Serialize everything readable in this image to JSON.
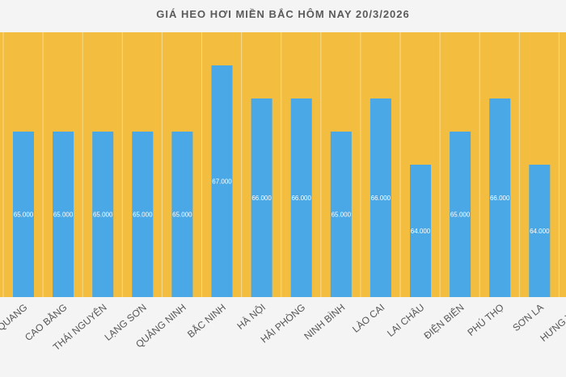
{
  "colors": {
    "plot_bg": "#f3bd3f",
    "bar": "#4aa8e6",
    "divider": "#f8da8e",
    "bar_label": "#ffffff"
  },
  "chart_data": {
    "type": "bar",
    "title": "GIÁ HEO HƠI MIỀN BẮC HÔM NAY 20/3/2026",
    "categories": [
      "QUANG",
      "CAO BẰNG",
      "THÁI NGUYÊN",
      "LẠNG SƠN",
      "QUẢNG NINH",
      "BẮC NINH",
      "HÀ NỘI",
      "HẢI PHÒNG",
      "NINH BÌNH",
      "LÀO CAI",
      "LAI CHÂU",
      "ĐIỆN BIÊN",
      "PHÚ THỌ",
      "SƠN LA",
      "HƯNG YÊN"
    ],
    "values": [
      65000,
      65000,
      65000,
      65000,
      65000,
      67000,
      66000,
      66000,
      65000,
      66000,
      64000,
      65000,
      66000,
      64000,
      null
    ],
    "value_labels": [
      "65.000",
      "65.000",
      "65.000",
      "65.000",
      "65.000",
      "67.000",
      "66.000",
      "66.000",
      "65.000",
      "66.000",
      "64.000",
      "65.000",
      "66.000",
      "64.000",
      ""
    ],
    "ylim": [
      60000,
      68000
    ],
    "grid": false,
    "xlabel": "",
    "ylabel": ""
  }
}
